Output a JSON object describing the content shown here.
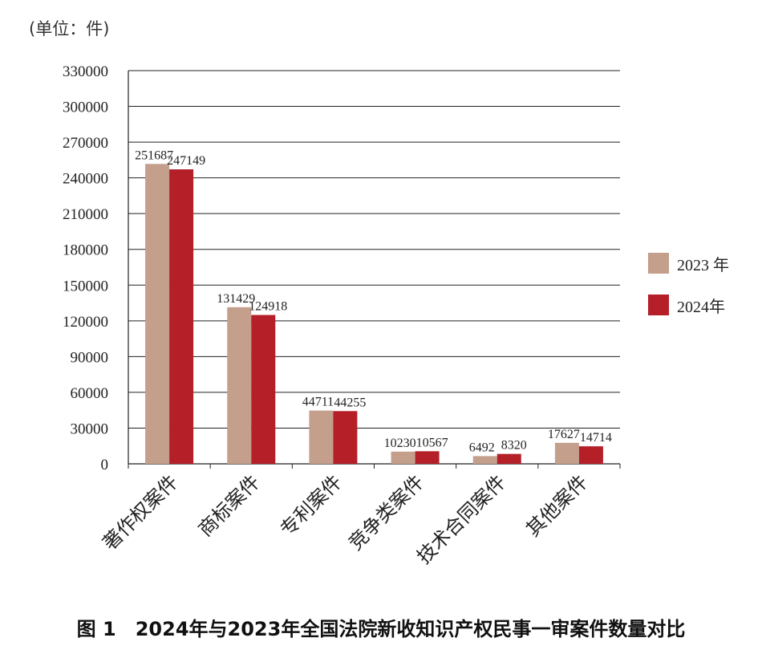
{
  "unit_label": "(单位：件)",
  "caption": "图 1　2024年与2023年全国法院新收知识产权民事一审案件数量对比",
  "colors": {
    "s2023": "#c49f8c",
    "s2024": "#b41f28",
    "grid": "#222222"
  },
  "chart_data": {
    "type": "bar",
    "categories": [
      "著作权案件",
      "商标案件",
      "专利案件",
      "竞争类案件",
      "技术合同案件",
      "其他案件"
    ],
    "series": [
      {
        "name": "2023 年",
        "values": [
          251687,
          131429,
          44711,
          10230,
          6492,
          17627
        ]
      },
      {
        "name": "2024年",
        "values": [
          247149,
          124918,
          44255,
          10567,
          8320,
          14714
        ]
      }
    ],
    "value_labels": [
      [
        "251687",
        "131429",
        "44711",
        "10230",
        "6492",
        "17627"
      ],
      [
        "247149",
        "124918",
        "44255",
        "10567",
        "8320",
        "14714"
      ]
    ],
    "ylim": [
      0,
      330000
    ],
    "yticks": [
      "0",
      "30000",
      "60000",
      "90000",
      "120000",
      "150000",
      "180000",
      "210000",
      "240000",
      "270000",
      "300000",
      "330000"
    ],
    "grid": true,
    "legend_position": "right"
  }
}
